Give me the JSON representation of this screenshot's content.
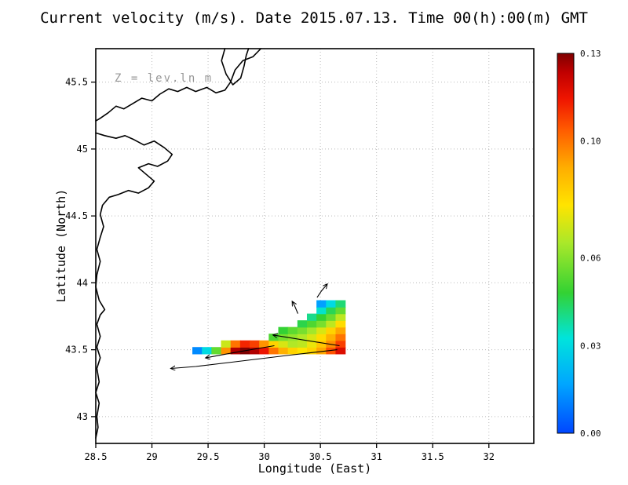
{
  "chart_data": {
    "type": "heatmap",
    "title": "Current velocity (m/s). Date 2015.07.13. Time 00(h):00(m) GMT",
    "depth_label": "Z = lev.ln m",
    "xlabel": "Longitude (East)",
    "ylabel": "Latitude (North)",
    "units": "m/s",
    "xlim": [
      28.5,
      32.4
    ],
    "ylim": [
      42.8,
      45.75
    ],
    "x_ticks": [
      28.5,
      29,
      29.5,
      30,
      30.5,
      31,
      31.5,
      32
    ],
    "y_ticks": [
      43,
      43.5,
      44,
      44.5,
      45,
      45.5
    ],
    "grid": "dotted",
    "colorbar": {
      "min": 0,
      "max": 0.13,
      "colormap": "jet",
      "tick_labels": [
        "0.00",
        "0.03",
        "0.06",
        "0.10",
        "0.13"
      ],
      "tick_values": [
        0,
        0.03,
        0.06,
        0.1,
        0.13
      ],
      "stops": [
        [
          0,
          "#0046ff"
        ],
        [
          0.13,
          "#00a6ff"
        ],
        [
          0.25,
          "#00e4dc"
        ],
        [
          0.37,
          "#33d233"
        ],
        [
          0.5,
          "#a9e82a"
        ],
        [
          0.6,
          "#ffe400"
        ],
        [
          0.7,
          "#ffad00"
        ],
        [
          0.8,
          "#ff5a00"
        ],
        [
          0.88,
          "#ef1500"
        ],
        [
          0.95,
          "#c00000"
        ],
        [
          1,
          "#7f0000"
        ]
      ]
    },
    "heatmap": {
      "lon0": 29.36,
      "dlon": 0.085,
      "dlat": 0.05,
      "rows": [
        {
          "lat": 43.47,
          "col0": 0,
          "values": [
            0.012,
            0.03,
            0.055,
            0.095,
            0.125,
            0.13,
            0.125,
            0.115,
            0.1,
            0.09,
            0.082,
            0.078,
            0.082,
            0.092,
            0.105,
            0.118
          ]
        },
        {
          "lat": 43.52,
          "col0": 3,
          "values": [
            0.07,
            0.1,
            0.112,
            0.108,
            0.095,
            0.082,
            0.072,
            0.066,
            0.068,
            0.075,
            0.085,
            0.096,
            0.108
          ]
        },
        {
          "lat": 43.57,
          "col0": 8,
          "values": [
            0.052,
            0.058,
            0.062,
            0.066,
            0.072,
            0.08,
            0.09,
            0.1
          ]
        },
        {
          "lat": 43.62,
          "col0": 9,
          "values": [
            0.048,
            0.054,
            0.058,
            0.064,
            0.072,
            0.082,
            0.092
          ]
        },
        {
          "lat": 43.67,
          "col0": 11,
          "values": [
            0.046,
            0.052,
            0.058,
            0.068,
            0.08
          ]
        },
        {
          "lat": 43.72,
          "col0": 12,
          "values": [
            0.04,
            0.048,
            0.056,
            0.068
          ]
        },
        {
          "lat": 43.77,
          "col0": 13,
          "values": [
            0.034,
            0.045,
            0.055
          ]
        },
        {
          "lat": 43.82,
          "col0": 13,
          "values": [
            0.016,
            0.03,
            0.042
          ]
        }
      ]
    },
    "vectors": [
      [
        [
          30.65,
          43.5
        ],
        [
          30.23,
          43.46
        ],
        [
          29.74,
          43.41
        ],
        [
          29.39,
          43.375
        ],
        [
          29.17,
          43.36
        ]
      ],
      [
        [
          30.09,
          43.53
        ],
        [
          29.74,
          43.48
        ],
        [
          29.48,
          43.44
        ]
      ],
      [
        [
          30.67,
          43.53
        ],
        [
          30.37,
          43.57
        ],
        [
          30.08,
          43.61
        ]
      ],
      [
        [
          30.47,
          43.89
        ],
        [
          30.51,
          43.94
        ],
        [
          30.56,
          43.99
        ]
      ],
      [
        [
          30.3,
          43.77
        ],
        [
          30.27,
          43.83
        ],
        [
          30.25,
          43.86
        ]
      ]
    ],
    "coastline": [
      [
        [
          29.97,
          45.75
        ],
        [
          29.9,
          45.69
        ],
        [
          29.81,
          45.66
        ],
        [
          29.74,
          45.59
        ],
        [
          29.7,
          45.5
        ],
        [
          29.65,
          45.44
        ],
        [
          29.57,
          45.42
        ],
        [
          29.49,
          45.46
        ],
        [
          29.39,
          45.43
        ],
        [
          29.31,
          45.46
        ],
        [
          29.23,
          45.43
        ],
        [
          29.15,
          45.45
        ],
        [
          29.07,
          45.41
        ],
        [
          29.0,
          45.36
        ],
        [
          28.91,
          45.38
        ],
        [
          28.83,
          45.34
        ],
        [
          28.75,
          45.3
        ],
        [
          28.68,
          45.32
        ],
        [
          28.61,
          45.27
        ],
        [
          28.54,
          45.23
        ],
        [
          28.5,
          45.21
        ]
      ],
      [
        [
          29.65,
          45.75
        ],
        [
          29.62,
          45.66
        ],
        [
          29.66,
          45.56
        ],
        [
          29.72,
          45.48
        ],
        [
          29.79,
          45.53
        ],
        [
          29.82,
          45.62
        ],
        [
          29.84,
          45.7
        ],
        [
          29.86,
          45.75
        ]
      ],
      [
        [
          28.5,
          45.12
        ],
        [
          28.58,
          45.1
        ],
        [
          28.68,
          45.08
        ],
        [
          28.76,
          45.1
        ],
        [
          28.84,
          45.07
        ],
        [
          28.93,
          45.03
        ],
        [
          29.02,
          45.06
        ],
        [
          29.11,
          45.01
        ],
        [
          29.18,
          44.96
        ],
        [
          29.14,
          44.91
        ],
        [
          29.05,
          44.87
        ],
        [
          28.97,
          44.89
        ],
        [
          28.88,
          44.86
        ],
        [
          28.95,
          44.81
        ],
        [
          29.02,
          44.76
        ],
        [
          28.97,
          44.71
        ],
        [
          28.88,
          44.67
        ],
        [
          28.79,
          44.69
        ],
        [
          28.7,
          44.66
        ],
        [
          28.62,
          44.64
        ],
        [
          28.56,
          44.58
        ],
        [
          28.54,
          44.51
        ],
        [
          28.57,
          44.42
        ],
        [
          28.54,
          44.34
        ],
        [
          28.51,
          44.25
        ],
        [
          28.54,
          44.16
        ],
        [
          28.51,
          44.06
        ],
        [
          28.5,
          43.97
        ],
        [
          28.53,
          43.87
        ],
        [
          28.58,
          43.8
        ],
        [
          28.54,
          43.76
        ],
        [
          28.51,
          43.69
        ],
        [
          28.54,
          43.6
        ],
        [
          28.51,
          43.52
        ],
        [
          28.54,
          43.44
        ],
        [
          28.51,
          43.36
        ],
        [
          28.53,
          43.26
        ],
        [
          28.5,
          43.18
        ],
        [
          28.53,
          43.1
        ],
        [
          28.51,
          43.0
        ],
        [
          28.52,
          42.92
        ],
        [
          28.5,
          42.84
        ]
      ]
    ]
  }
}
